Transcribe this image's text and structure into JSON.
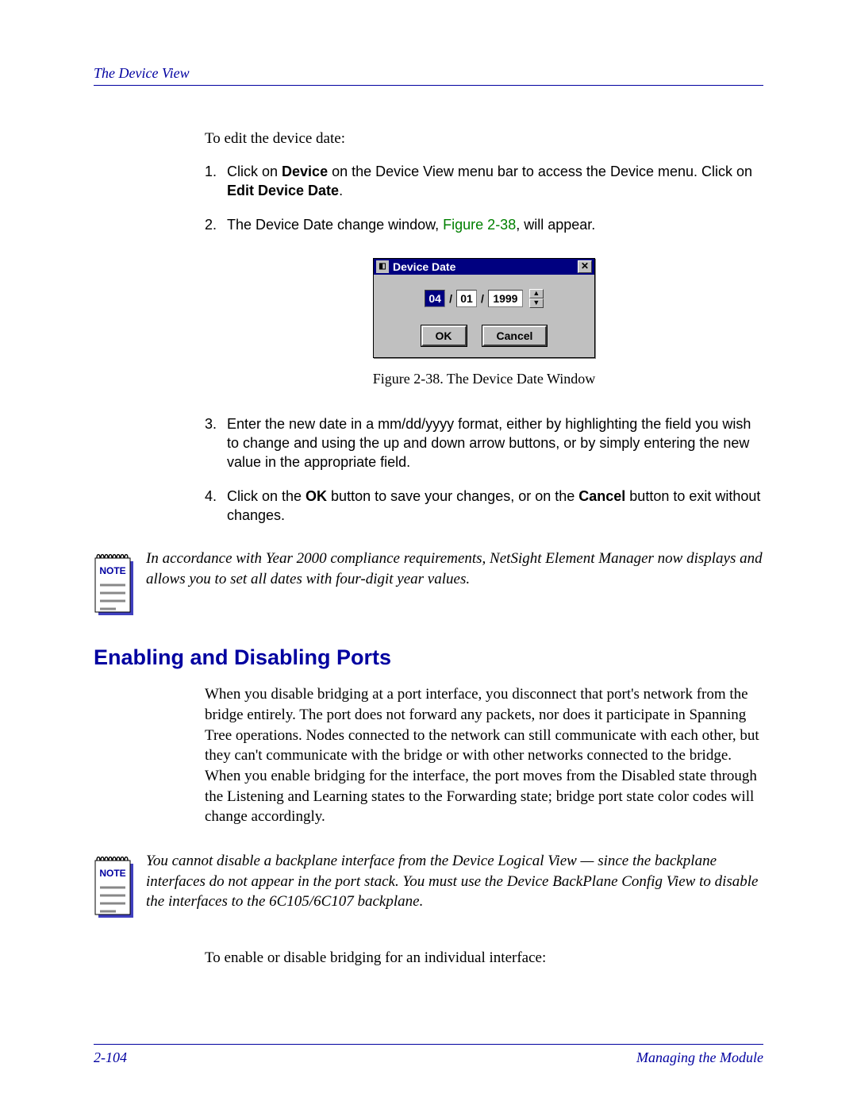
{
  "header": {
    "title": "The Device View"
  },
  "colors": {
    "accent": "#0000a0",
    "figure_ref": "#008000",
    "window_bg": "#c0c0c0",
    "titlebar_bg": "#000080",
    "titlebar_fg": "#ffffff"
  },
  "intro": "To edit the device date:",
  "steps_top": [
    {
      "n": "1.",
      "html": "Click on <b>Device</b> on the Device View menu bar to access the Device menu. Click on <b>Edit Device Date</b>."
    },
    {
      "n": "2.",
      "html": "The Device Date change window, <span class=\"fig-ref\">Figure 2-38</span>, will appear."
    }
  ],
  "device_date_window": {
    "title": "Device Date",
    "month": "04",
    "day": "01",
    "year": "1999",
    "sep": "/",
    "ok": "OK",
    "cancel": "Cancel",
    "close_glyph": "✕",
    "up_glyph": "▲",
    "down_glyph": "▼"
  },
  "figure_caption": "Figure 2-38. The Device Date Window",
  "steps_bottom": [
    {
      "n": "3.",
      "html": "Enter the new date in a mm/dd/yyyy format, either by highlighting the field you wish to change and using the up and down arrow buttons, or by simply entering the new value in the appropriate field."
    },
    {
      "n": "4.",
      "html": "Click on the <b>OK</b> button to save your changes, or on the <b>Cancel</b> button to exit without changes."
    }
  ],
  "note1": {
    "label": "NOTE",
    "text": "In accordance with Year 2000 compliance requirements, NetSight Element Manager now displays and allows you to set all dates with four-digit year values."
  },
  "section_heading": "Enabling and Disabling Ports",
  "section_para": "When you disable bridging at a port interface, you disconnect that port's network from the bridge entirely. The port does not forward any packets, nor does it participate in Spanning Tree operations. Nodes connected to the network can still communicate with each other, but they can't communicate with the bridge or with other networks connected to the bridge. When you enable bridging for the interface, the port moves from the Disabled state through the Listening and Learning states to the Forwarding state; bridge port state color codes will change accordingly.",
  "note2": {
    "label": "NOTE",
    "text": "You cannot disable a backplane interface from the Device Logical View — since the backplane interfaces do not appear in the port stack. You must use the Device BackPlane Config View to disable the interfaces to the 6C105/6C107 backplane."
  },
  "closing": "To enable or disable bridging for an individual interface:",
  "footer": {
    "left": "2-104",
    "right": "Managing the Module"
  }
}
